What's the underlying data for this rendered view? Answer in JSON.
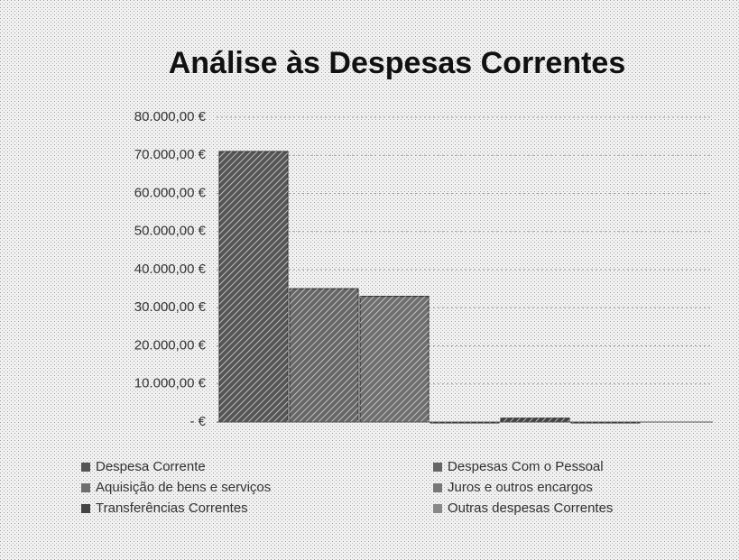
{
  "chart_data": {
    "type": "bar",
    "title": "Análise às Despesas Correntes",
    "categories": [
      null
    ],
    "series": [
      {
        "name": "Despesa Corrente",
        "color": "#555555",
        "values": [
          71000
        ]
      },
      {
        "name": "Despesas Com o Pessoal",
        "color": "#666666",
        "values": [
          35000
        ]
      },
      {
        "name": "Aquisição de bens e serviços",
        "color": "#6e6e6e",
        "values": [
          33000
        ]
      },
      {
        "name": "Juros e outros encargos",
        "color": "#777777",
        "values": [
          0
        ]
      },
      {
        "name": "Transferências Correntes",
        "color": "#444444",
        "values": [
          1000
        ]
      },
      {
        "name": "Outras despesas Correntes",
        "color": "#888888",
        "values": [
          0
        ]
      }
    ],
    "ylim": [
      0,
      80000
    ],
    "yticks": [
      {
        "value": 0,
        "label": "- €"
      },
      {
        "value": 10000,
        "label": "10.000,00 €"
      },
      {
        "value": 20000,
        "label": "20.000,00 €"
      },
      {
        "value": 30000,
        "label": "30.000,00 €"
      },
      {
        "value": 40000,
        "label": "40.000,00 €"
      },
      {
        "value": 50000,
        "label": "50.000,00 €"
      },
      {
        "value": 60000,
        "label": "60.000,00 €"
      },
      {
        "value": 70000,
        "label": "70.000,00 €"
      },
      {
        "value": 80000,
        "label": "80.000,00 €"
      }
    ],
    "grid": true,
    "legend": "bottom"
  }
}
